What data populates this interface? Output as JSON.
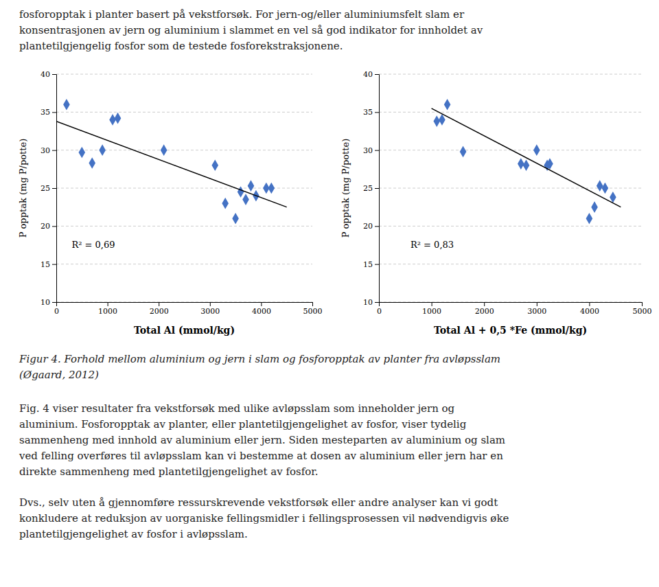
{
  "intro": [
    "fosforopptak i planter basert på vekstforsøk. For jern-og/eller aluminiumsfelt slam er",
    "konsentrasjonen av jern og aluminium i slammet en vel så god indikator for innholdet av",
    "plantetilgjengelig fosfor som de testede fosforekstraksjonene."
  ],
  "chart_data": [
    {
      "type": "scatter",
      "x_label": "Total Al (mmol/kg)",
      "y_label": "P opptak (mg P/potte)",
      "series": [
        {
          "type": "scatter",
          "marker": "diamond",
          "color": "#4472C4",
          "x": [
            200,
            500,
            700,
            900,
            1100,
            1200,
            2100,
            3100,
            3300,
            3500,
            3600,
            3700,
            3800,
            3900,
            4100,
            4200
          ],
          "values": [
            36,
            29.7,
            28.3,
            30.0,
            34.0,
            34.2,
            30.0,
            28.0,
            23.0,
            21.0,
            24.5,
            23.5,
            25.3,
            24.0,
            25.0,
            25.0
          ]
        },
        {
          "type": "line",
          "line_style": "solid",
          "color": "#000000",
          "x": [
            0,
            4500
          ],
          "values": [
            33.8,
            22.5
          ]
        }
      ],
      "annotations": [
        {
          "text": "R² = 0,69",
          "x": 300,
          "y": 17.5
        }
      ],
      "xlim": [
        0,
        5000
      ],
      "ylim": [
        10,
        40
      ],
      "xticks": [
        0,
        1000,
        2000,
        3000,
        4000,
        5000
      ],
      "yticks": [
        10,
        15,
        20,
        25,
        30,
        35,
        40
      ],
      "grid": "y"
    },
    {
      "type": "scatter",
      "x_label": "Total Al + 0,5 *Fe (mmol/kg)",
      "y_label": "P opptak (mg P/potte)",
      "series": [
        {
          "type": "scatter",
          "marker": "diamond",
          "color": "#4472C4",
          "x": [
            1100,
            1200,
            1300,
            1600,
            2700,
            2800,
            3000,
            3200,
            3250,
            4000,
            4100,
            4200,
            4300,
            4450
          ],
          "values": [
            33.8,
            34.0,
            36.0,
            29.8,
            28.2,
            28.0,
            30.0,
            28.0,
            28.2,
            21.0,
            22.5,
            25.3,
            25.0,
            23.8
          ]
        },
        {
          "type": "line",
          "line_style": "solid",
          "color": "#000000",
          "x": [
            1000,
            4600
          ],
          "values": [
            35.5,
            22.5
          ]
        }
      ],
      "annotations": [
        {
          "text": "R² = 0,83",
          "x": 600,
          "y": 17.5
        }
      ],
      "xlim": [
        0,
        5000
      ],
      "ylim": [
        10,
        40
      ],
      "xticks": [
        0,
        1000,
        2000,
        3000,
        4000,
        5000
      ],
      "yticks": [
        10,
        15,
        20,
        25,
        30,
        35,
        40
      ],
      "grid": "y"
    }
  ],
  "caption": [
    "Figur 4. Forhold mellom aluminium og jern i slam og fosforopptak av planter fra avløpsslam",
    "(Øgaard, 2012)"
  ],
  "paragraphs": [
    [
      "Fig. 4 viser resultater fra vekstforsøk med ulike avløpsslam som inneholder jern og",
      "aluminium. Fosforopptak av planter, eller plantetilgjengelighet av fosfor, viser tydelig",
      "sammenheng med innhold av aluminium eller jern. Siden mesteparten av aluminium og slam",
      "ved felling overføres til avløpsslam kan vi bestemme at dosen av aluminium eller jern har en",
      "direkte sammenheng med plantetilgjengelighet av fosfor."
    ],
    [
      "Dvs., selv uten å gjennomføre ressurskrevende vekstforsøk eller andre analyser kan vi godt",
      "konkludere at reduksjon av uorganiske fellingsmidler i fellingsprosessen vil nødvendigvis øke",
      "plantetilgjengelighet av fosfor i avløpsslam."
    ]
  ]
}
